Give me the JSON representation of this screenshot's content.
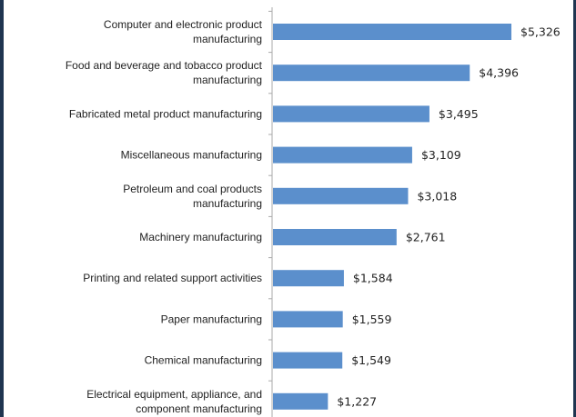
{
  "chart_data": {
    "type": "bar",
    "orientation": "horizontal",
    "title": "",
    "xlabel": "",
    "ylabel": "",
    "grid": false,
    "legend": "none",
    "bar_color": "#5b8fcc",
    "frame_color": "#1f3550",
    "xlim": [
      0,
      5326
    ],
    "categories": [
      [
        "Computer and electronic product",
        "manufacturing"
      ],
      [
        "Food and beverage and tobacco product",
        "manufacturing"
      ],
      [
        "Fabricated metal product manufacturing"
      ],
      [
        "Miscellaneous manufacturing"
      ],
      [
        "Petroleum and coal products",
        "manufacturing"
      ],
      [
        "Machinery manufacturing"
      ],
      [
        "Printing and related support activities"
      ],
      [
        "Paper manufacturing"
      ],
      [
        "Chemical manufacturing"
      ],
      [
        "Electrical equipment, appliance, and",
        "component manufacturing"
      ]
    ],
    "values": [
      5326,
      4396,
      3495,
      3109,
      3018,
      2761,
      1584,
      1559,
      1549,
      1227
    ],
    "value_labels": [
      "$5,326",
      "$4,396",
      "$3,495",
      "$3,109",
      "$3,018",
      "$2,761",
      "$1,584",
      "$1,559",
      "$1,549",
      "$1,227"
    ]
  }
}
